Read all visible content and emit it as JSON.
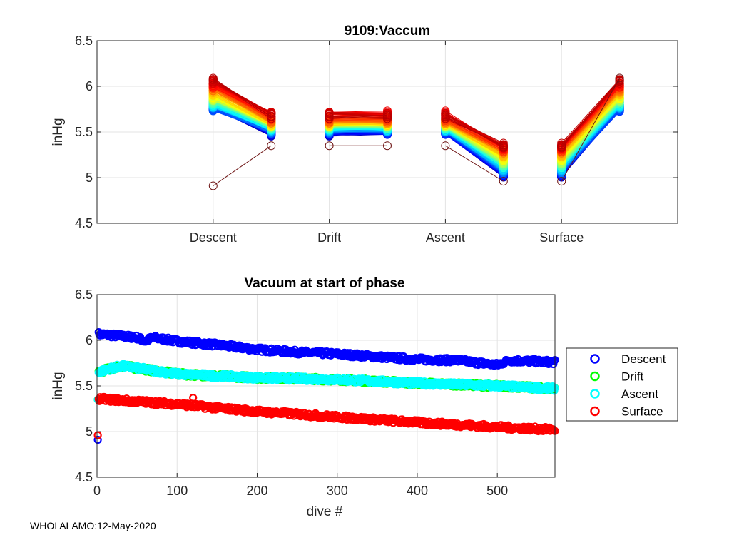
{
  "footer": "WHOI ALAMO:12-May-2020",
  "chart_data": [
    {
      "type": "line",
      "title": "9109:Vaccum",
      "xlabel": "",
      "ylabel": "inHg",
      "xlim": [
        0,
        5
      ],
      "ylim": [
        4.5,
        6.5
      ],
      "grid": true,
      "categories": [
        "Descent",
        "Drift",
        "Ascent",
        "Surface"
      ],
      "yticks": [
        "4.5",
        "5",
        "5.5",
        "6",
        "6.5"
      ],
      "description_of_series": "One line per dive from phase start (x=k) to phase end (x=k+0.5), colored by dive number (early=dark red, late=blue); derived from chart 2 series",
      "colormap": "jet-reversed"
    },
    {
      "type": "scatter",
      "title": "Vacuum at start of phase",
      "xlabel": "dive #",
      "ylabel": "inHg",
      "xlim": [
        0,
        572
      ],
      "ylim": [
        4.5,
        6.5
      ],
      "grid": true,
      "xticks": [
        "0",
        "100",
        "200",
        "300",
        "400",
        "500"
      ],
      "yticks": [
        "4.5",
        "5",
        "5.5",
        "6",
        "6.5"
      ],
      "legend_placement": "outside-right",
      "n_dives": 572,
      "series": [
        {
          "name": "Descent",
          "color": "#0000ff",
          "trend": [
            [
              0,
              6.07
            ],
            [
              50,
              6.03
            ],
            [
              60,
              5.99
            ],
            [
              70,
              6.03
            ],
            [
              100,
              5.99
            ],
            [
              150,
              5.95
            ],
            [
              200,
              5.9
            ],
            [
              250,
              5.87
            ],
            [
              300,
              5.85
            ],
            [
              350,
              5.82
            ],
            [
              400,
              5.79
            ],
            [
              450,
              5.78
            ],
            [
              500,
              5.73
            ],
            [
              515,
              5.78
            ],
            [
              572,
              5.76
            ]
          ],
          "outliers": [
            [
              1,
              4.91
            ]
          ]
        },
        {
          "name": "Drift",
          "color": "#00ff00",
          "trend": [
            [
              0,
              5.65
            ],
            [
              30,
              5.72
            ],
            [
              100,
              5.63
            ],
            [
              200,
              5.59
            ],
            [
              300,
              5.57
            ],
            [
              400,
              5.53
            ],
            [
              500,
              5.5
            ],
            [
              572,
              5.47
            ]
          ],
          "outliers": [
            [
              1,
              5.35
            ]
          ]
        },
        {
          "name": "Ascent",
          "color": "#00ffff",
          "trend": [
            [
              0,
              5.65
            ],
            [
              30,
              5.72
            ],
            [
              100,
              5.63
            ],
            [
              200,
              5.59
            ],
            [
              300,
              5.57
            ],
            [
              400,
              5.53
            ],
            [
              500,
              5.5
            ],
            [
              572,
              5.47
            ]
          ],
          "outliers": [
            [
              1,
              5.35
            ]
          ]
        },
        {
          "name": "Surface",
          "color": "#ff0000",
          "trend": [
            [
              0,
              5.36
            ],
            [
              100,
              5.3
            ],
            [
              200,
              5.22
            ],
            [
              300,
              5.16
            ],
            [
              400,
              5.1
            ],
            [
              500,
              5.05
            ],
            [
              572,
              5.02
            ]
          ],
          "outliers": [
            [
              1,
              4.96
            ],
            [
              120,
              5.37
            ]
          ]
        }
      ]
    }
  ]
}
